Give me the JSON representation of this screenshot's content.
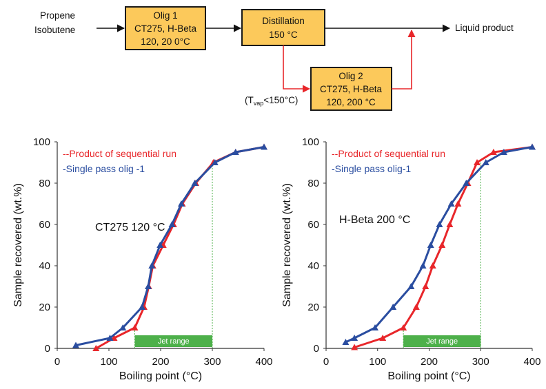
{
  "flow": {
    "feed_line1": "Propene",
    "feed_line2": "Isobutene",
    "olig1": {
      "line1": "Olig 1",
      "line2": "CT275, H-Beta",
      "line3": "120, 20 0°C"
    },
    "distillation": {
      "line1": "Distillation",
      "line2": "150 °C"
    },
    "olig2": {
      "line1": "Olig 2",
      "line2": "CT275, H-Beta",
      "line3": "120, 200 °C"
    },
    "tvap": {
      "prefix": "(T",
      "sub": "vap",
      "suffix": "<150°C)"
    },
    "output": "Liquid product",
    "colors": {
      "box_fill": "#fcc95b",
      "arrow_black": "#111111",
      "arrow_red": "#e8262a"
    }
  },
  "chart_data": [
    {
      "type": "line",
      "xlabel": "Boiling point (°C)",
      "ylabel": "Sample recovered (wt.%)",
      "xlim": [
        0,
        400
      ],
      "ylim": [
        0,
        100
      ],
      "xticks": [
        "0",
        "100",
        "200",
        "300",
        "400"
      ],
      "yticks": [
        "0",
        "20",
        "40",
        "60",
        "80",
        "100"
      ],
      "annotation": "CT275 120 °C",
      "legend_position": "top-left",
      "series": [
        {
          "name": "--Product of sequential run",
          "color": "#e8262a",
          "points": [
            [
              75,
              0
            ],
            [
              110,
              5
            ],
            [
              150,
              10
            ],
            [
              168,
              20
            ],
            [
              177,
              30
            ],
            [
              185,
              40
            ],
            [
              205,
              50
            ],
            [
              225,
              60
            ],
            [
              242,
              70
            ],
            [
              268,
              80
            ],
            [
              302,
              90
            ],
            [
              345,
              95
            ],
            [
              400,
              97.5
            ]
          ]
        },
        {
          "name": "-Single pass olig -1",
          "color": "#2a4da0",
          "points": [
            [
              36,
              1.5
            ],
            [
              102,
              5
            ],
            [
              127,
              10
            ],
            [
              164,
              20
            ],
            [
              176,
              30
            ],
            [
              183,
              40
            ],
            [
              199,
              50
            ],
            [
              222,
              60
            ],
            [
              240,
              70
            ],
            [
              266,
              80
            ],
            [
              305,
              90
            ],
            [
              345,
              95
            ],
            [
              400,
              97.5
            ]
          ]
        }
      ],
      "jet_range": {
        "label": "Jet range",
        "x": [
          150,
          300
        ],
        "color": "#4db04a"
      }
    },
    {
      "type": "line",
      "xlabel": "Boiling point (°C)",
      "ylabel": "Sample recovered (wt.%)",
      "xlim": [
        0,
        400
      ],
      "ylim": [
        0,
        100
      ],
      "xticks": [
        "0",
        "100",
        "200",
        "300",
        "400"
      ],
      "yticks": [
        "0",
        "20",
        "40",
        "60",
        "80",
        "100"
      ],
      "annotation": "H-Beta 200 °C",
      "legend_position": "top-left",
      "series": [
        {
          "name": "--Product of sequential run",
          "color": "#e8262a",
          "points": [
            [
              55,
              0.5
            ],
            [
              110,
              5
            ],
            [
              150,
              10
            ],
            [
              175,
              20
            ],
            [
              193,
              30
            ],
            [
              207,
              40
            ],
            [
              225,
              50
            ],
            [
              240,
              60
            ],
            [
              256,
              70
            ],
            [
              275,
              80
            ],
            [
              293,
              90
            ],
            [
              325,
              95
            ],
            [
              400,
              97.5
            ]
          ]
        },
        {
          "name": "-Single pass olig-1",
          "color": "#2a4da0",
          "points": [
            [
              38,
              3
            ],
            [
              55,
              5
            ],
            [
              95,
              10
            ],
            [
              130,
              20
            ],
            [
              165,
              30
            ],
            [
              188,
              40
            ],
            [
              203,
              50
            ],
            [
              220,
              60
            ],
            [
              243,
              70
            ],
            [
              272,
              80
            ],
            [
              310,
              90
            ],
            [
              345,
              95
            ],
            [
              400,
              97.5
            ]
          ]
        }
      ],
      "jet_range": {
        "label": "Jet range",
        "x": [
          150,
          300
        ],
        "color": "#4db04a"
      }
    }
  ]
}
